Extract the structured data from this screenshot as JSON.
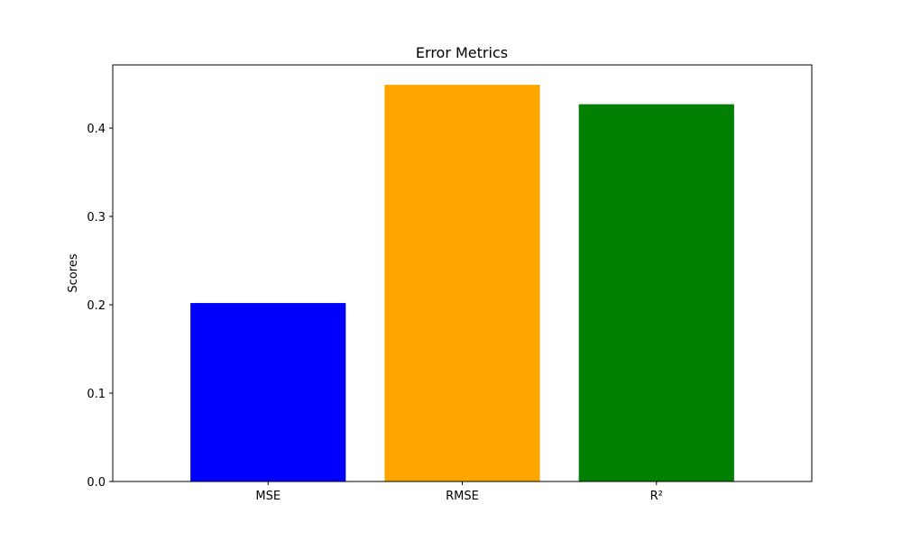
{
  "chart_data": {
    "type": "bar",
    "title": "Error Metrics",
    "xlabel": "",
    "ylabel": "Scores",
    "categories": [
      "MSE",
      "RMSE",
      "R²"
    ],
    "values": [
      0.202,
      0.449,
      0.427
    ],
    "colors": [
      "#0000ff",
      "#ffa500",
      "#008000"
    ],
    "ylim": [
      0,
      0.4715
    ],
    "yticks": [
      0.0,
      0.1,
      0.2,
      0.3,
      0.4
    ],
    "ytick_labels": [
      "0.0",
      "0.1",
      "0.2",
      "0.3",
      "0.4"
    ],
    "grid": false,
    "legend": "none"
  }
}
